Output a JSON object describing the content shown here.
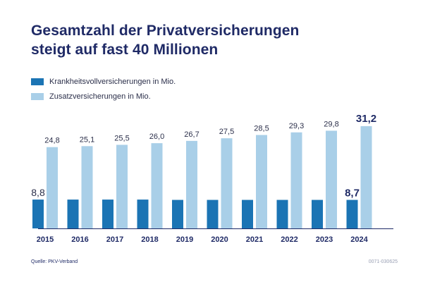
{
  "title_line1": "Gesamtzahl der Privatversicherungen",
  "title_line2": "steigt auf fast 40 Millionen",
  "legend": [
    {
      "label": "Krankheitsvollversicherungen in Mio."
    },
    {
      "label": "Zusatzversicherungen in Mio."
    }
  ],
  "colors": {
    "full": "#1b74b4",
    "supplementary": "#a9cfe8",
    "title": "#1f2a66"
  },
  "source": "Quelle: PKV-Verband",
  "code": "0071-030625",
  "chart_data": {
    "type": "bar",
    "categories": [
      "2015",
      "2016",
      "2017",
      "2018",
      "2019",
      "2020",
      "2021",
      "2022",
      "2023",
      "2024"
    ],
    "series": [
      {
        "name": "Krankheitsvollversicherungen in Mio.",
        "values": [
          8.8,
          8.8,
          8.8,
          8.8,
          8.7,
          8.7,
          8.7,
          8.7,
          8.7,
          8.7
        ],
        "labels": [
          "8,8",
          "",
          "",
          "",
          "",
          "",
          "",
          "",
          "",
          "8,7"
        ]
      },
      {
        "name": "Zusatzversicherungen in Mio.",
        "values": [
          24.8,
          25.1,
          25.5,
          26.0,
          26.7,
          27.5,
          28.5,
          29.3,
          29.8,
          31.2
        ],
        "labels": [
          "24,8",
          "25,1",
          "25,5",
          "26,0",
          "26,7",
          "27,5",
          "28,5",
          "29,3",
          "29,8",
          "31,2"
        ]
      }
    ],
    "title": "Gesamtzahl der Privatversicherungen steigt auf fast 40 Millionen",
    "xlabel": "",
    "ylabel": "",
    "ylim": [
      0,
      31.2
    ],
    "grid": false,
    "legend_position": "top-left"
  }
}
